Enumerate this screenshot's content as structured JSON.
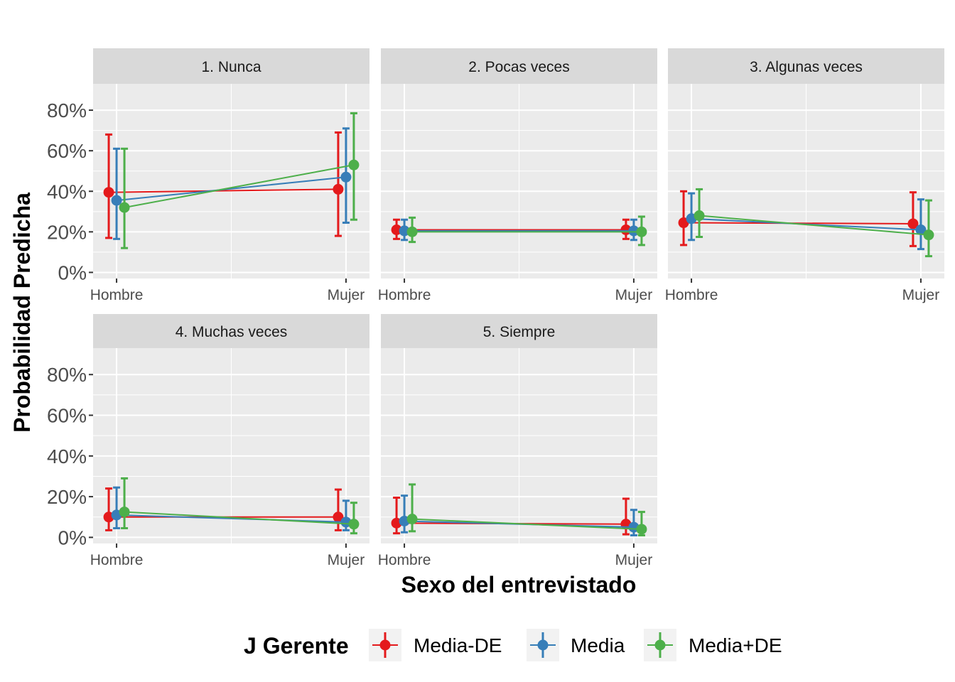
{
  "chart_data": {
    "type": "line",
    "facet_type": "point-range faceted",
    "xlabel": "Sexo del entrevistado",
    "ylabel": "Probabilidad Predicha",
    "categories": [
      "Hombre",
      "Mujer"
    ],
    "ylim": [
      -0.03,
      0.93
    ],
    "y_ticks": [
      0,
      0.2,
      0.4,
      0.6,
      0.8
    ],
    "y_tick_labels": [
      "0%",
      "20%",
      "40%",
      "60%",
      "80%"
    ],
    "grid": true,
    "legend": {
      "title": "J Gerente",
      "position": "bottom",
      "entries": [
        "Media-DE",
        "Media",
        "Media+DE"
      ]
    },
    "series_colors": [
      "#E41A1C",
      "#377EB8",
      "#4DAF4A"
    ],
    "facets": [
      {
        "title": "1. Nunca",
        "series": [
          {
            "name": "Media-DE",
            "values": [
              0.395,
              0.41
            ],
            "lower": [
              0.17,
              0.18
            ],
            "upper": [
              0.68,
              0.69
            ]
          },
          {
            "name": "Media",
            "values": [
              0.355,
              0.47
            ],
            "lower": [
              0.165,
              0.245
            ],
            "upper": [
              0.61,
              0.71
            ]
          },
          {
            "name": "Media+DE",
            "values": [
              0.32,
              0.53
            ],
            "lower": [
              0.12,
              0.26
            ],
            "upper": [
              0.61,
              0.785
            ]
          }
        ]
      },
      {
        "title": "2. Pocas veces",
        "series": [
          {
            "name": "Media-DE",
            "values": [
              0.21,
              0.21
            ],
            "lower": [
              0.165,
              0.165
            ],
            "upper": [
              0.26,
              0.26
            ]
          },
          {
            "name": "Media",
            "values": [
              0.205,
              0.205
            ],
            "lower": [
              0.16,
              0.16
            ],
            "upper": [
              0.26,
              0.26
            ]
          },
          {
            "name": "Media+DE",
            "values": [
              0.2,
              0.2
            ],
            "lower": [
              0.15,
              0.135
            ],
            "upper": [
              0.27,
              0.275
            ]
          }
        ]
      },
      {
        "title": "3. Algunas veces",
        "series": [
          {
            "name": "Media-DE",
            "values": [
              0.245,
              0.24
            ],
            "lower": [
              0.135,
              0.13
            ],
            "upper": [
              0.4,
              0.395
            ]
          },
          {
            "name": "Media",
            "values": [
              0.265,
              0.21
            ],
            "lower": [
              0.16,
              0.115
            ],
            "upper": [
              0.39,
              0.36
            ]
          },
          {
            "name": "Media+DE",
            "values": [
              0.28,
              0.185
            ],
            "lower": [
              0.175,
              0.08
            ],
            "upper": [
              0.41,
              0.355
            ]
          }
        ]
      },
      {
        "title": "4. Muchas veces",
        "series": [
          {
            "name": "Media-DE",
            "values": [
              0.1,
              0.1
            ],
            "lower": [
              0.035,
              0.035
            ],
            "upper": [
              0.24,
              0.235
            ]
          },
          {
            "name": "Media",
            "values": [
              0.11,
              0.075
            ],
            "lower": [
              0.045,
              0.035
            ],
            "upper": [
              0.245,
              0.18
            ]
          },
          {
            "name": "Media+DE",
            "values": [
              0.125,
              0.065
            ],
            "lower": [
              0.045,
              0.02
            ],
            "upper": [
              0.29,
              0.17
            ]
          }
        ]
      },
      {
        "title": "5. Siempre",
        "series": [
          {
            "name": "Media-DE",
            "values": [
              0.07,
              0.065
            ],
            "lower": [
              0.02,
              0.015
            ],
            "upper": [
              0.195,
              0.19
            ]
          },
          {
            "name": "Media",
            "values": [
              0.08,
              0.05
            ],
            "lower": [
              0.025,
              0.01
            ],
            "upper": [
              0.205,
              0.135
            ]
          },
          {
            "name": "Media+DE",
            "values": [
              0.09,
              0.04
            ],
            "lower": [
              0.03,
              0.01
            ],
            "upper": [
              0.26,
              0.125
            ]
          }
        ]
      }
    ]
  }
}
